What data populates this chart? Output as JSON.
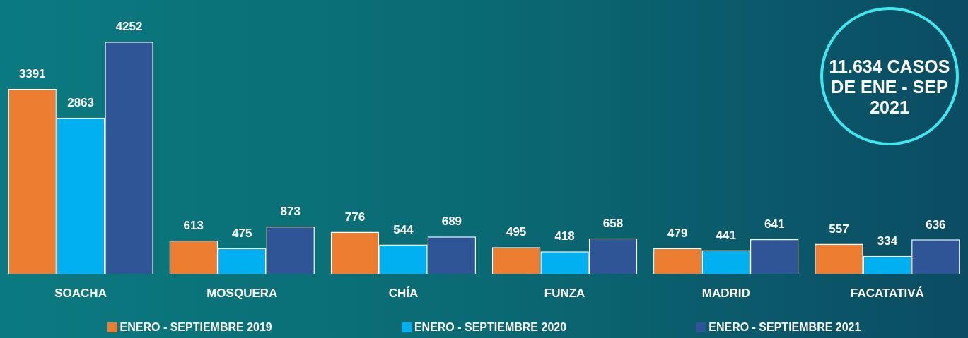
{
  "chart_data": {
    "type": "bar",
    "categories": [
      "SOACHA",
      "MOSQUERA",
      "CHÍA",
      "FUNZA",
      "MADRID",
      "FACATATIVÁ"
    ],
    "series": [
      {
        "name": "ENERO - SEPTIEMBRE 2019",
        "color": "#ed7d31",
        "values": [
          3391,
          613,
          776,
          495,
          479,
          557
        ]
      },
      {
        "name": "ENERO - SEPTIEMBRE 2020",
        "color": "#00b0f0",
        "values": [
          2863,
          475,
          544,
          418,
          441,
          334
        ]
      },
      {
        "name": "ENERO - SEPTIEMBRE 2021",
        "color": "#2f5597",
        "values": [
          4252,
          873,
          689,
          658,
          641,
          636
        ]
      }
    ],
    "data_labels": true,
    "legend": "bottom",
    "grid": false,
    "tick_labels": "x",
    "annotations": [
      "11.634 CASOS DE ENE - SEP 2021"
    ]
  }
}
